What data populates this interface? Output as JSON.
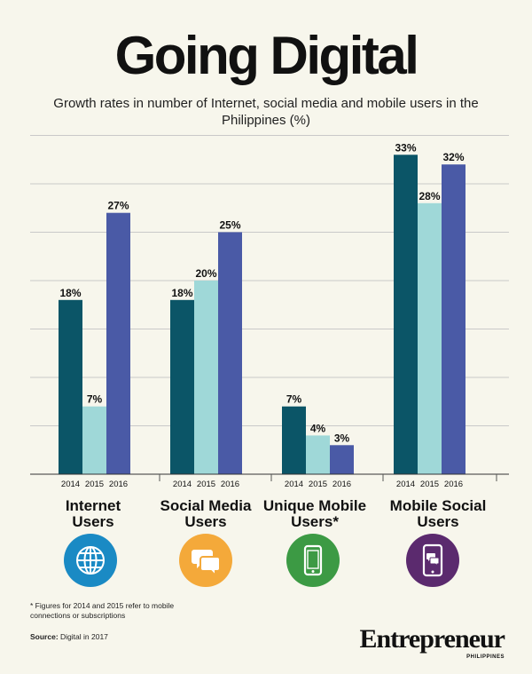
{
  "chart_data": {
    "type": "bar",
    "title": "Going Digital",
    "subtitle": "Growth rates in number of Internet, social media and mobile users in the Philippines (%)",
    "categories": [
      "Internet Users",
      "Social Media Users",
      "Unique Mobile Users*",
      "Mobile Social Users"
    ],
    "series": [
      {
        "name": "2014",
        "values": [
          18,
          18,
          7,
          33
        ],
        "color": "#0b5567"
      },
      {
        "name": "2015",
        "values": [
          7,
          20,
          4,
          28
        ],
        "color": "#9fd8d8"
      },
      {
        "name": "2016",
        "values": [
          27,
          25,
          3,
          32
        ],
        "color": "#4a5aa6"
      }
    ],
    "value_suffix": "%",
    "ylim": [
      0,
      35
    ],
    "grid": true,
    "xlabel": "",
    "ylabel": ""
  },
  "category_lines": [
    [
      "Internet",
      "Users"
    ],
    [
      "Social Media",
      "Users"
    ],
    [
      "Unique Mobile",
      "Users*"
    ],
    [
      "Mobile Social",
      "Users"
    ]
  ],
  "icons": [
    {
      "name": "globe-icon",
      "color": "#1a8ac4"
    },
    {
      "name": "chat-bubbles-icon",
      "color": "#f4a93a"
    },
    {
      "name": "mobile-phone-icon",
      "color": "#3c9a44"
    },
    {
      "name": "mobile-chat-icon",
      "color": "#5b2a6e"
    }
  ],
  "footnote": "* Figures for 2014 and 2015 refer to mobile connections or subscriptions",
  "source_label": "Source:",
  "source_text": "Digital in 2017",
  "brand": "Entrepreneur",
  "brand_sub": "PHILIPPINES"
}
